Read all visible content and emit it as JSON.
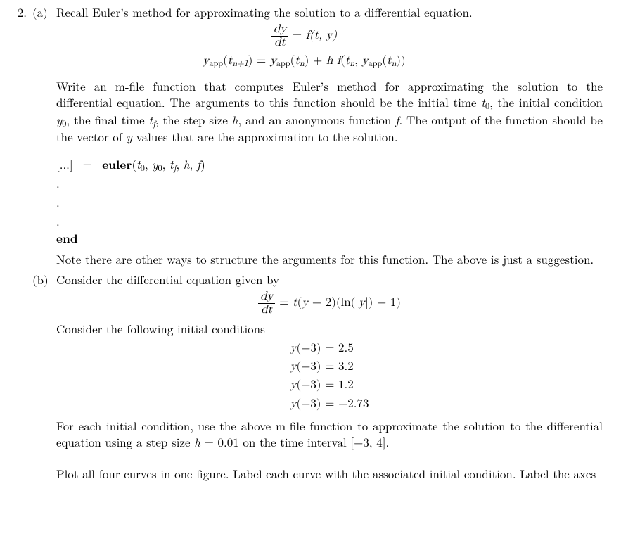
{
  "colors": {
    "text": "#000000",
    "background": "#ffffff"
  },
  "typography": {
    "base_font_size_pt": 13,
    "math_font": "Latin Modern Math / Times",
    "body_font": "Latin Modern Roman / Times"
  },
  "question_number": "2.",
  "parts": {
    "a": {
      "label": "(a)",
      "intro": "Recall Euler’s method for approximating the solution to a differential equation.",
      "eq1_lhs_num": "dy",
      "eq1_lhs_den": "dt",
      "eq1_eq": " = ",
      "eq1_rhs": "f(t, y)",
      "eq2": "y",
      "eq2_app": "app",
      "eq2_tn1_open": "(t",
      "eq2_tn1_sub": "n+1",
      "eq2_tn1_close": ") = ",
      "eq2_yapp2": "y",
      "eq2_app2": "app",
      "eq2_tn_open": "(t",
      "eq2_tn_sub": "n",
      "eq2_tn_close": ") + h f(t",
      "eq2_tn_sub2": "n",
      "eq2_mid": ", y",
      "eq2_app3": "app",
      "eq2_tn_open2": "(t",
      "eq2_tn_sub3": "n",
      "eq2_tn_close2": "))",
      "body1a": "Write an m-file function that computes Euler’s method for approximating the solution to the differential equation. The arguments to this function should be the initial time ",
      "body1_t0_t": "t",
      "body1_t0_0": "0",
      "body1b": ", the initial condition ",
      "body1_y0_y": "y",
      "body1_y0_0": "0",
      "body1c": ", the final time ",
      "body1_tf_t": "t",
      "body1_tf_f": "f",
      "body1d": ", the step size ",
      "body1_h": "h",
      "body1e": ", and an anonymous function ",
      "body1_f": "f",
      "body1f": ". The output of the function should be the vector of ",
      "body1_y": "y",
      "body1g": "-values that are the approximation to the solution.",
      "sig_lhs": "[...]  =  euler(",
      "sig_args_t0_t": "t",
      "sig_args_t0_0": "0",
      "sig_c1": ", ",
      "sig_args_y0_y": "y",
      "sig_args_y0_0": "0",
      "sig_c2": ", ",
      "sig_args_tf_t": "t",
      "sig_args_tf_f": "f",
      "sig_c3": ", ",
      "sig_args_h": "h",
      "sig_c4": ", ",
      "sig_args_f": "f",
      "sig_close": ")",
      "dot1": ".",
      "dot2": ".",
      "dot3": ".",
      "end": "end",
      "note": "Note there are other ways to structure the arguments for this function.  The above is just a suggestion."
    },
    "b": {
      "label": "(b)",
      "intro": "Consider the differential equation given by",
      "eq_num": "dy",
      "eq_den": "dt",
      "eq_eq": " = ",
      "eq_rhs_a": "t(y − 2)(ln(|y|) − 1)",
      "ic_intro": "Consider the following initial conditions",
      "ic1_l": "y(−3) = ",
      "ic1_r": "2.5",
      "ic2_l": "y(−3) = ",
      "ic2_r": "3.2",
      "ic3_l": "y(−3) = ",
      "ic3_r": "1.2",
      "ic4_l": "y(−3) = ",
      "ic4_r": "−2.73",
      "body1a": "For each initial condition, use the above m-file function to approximate the solution to the differential equation using a step size ",
      "body1_h": "h",
      "body1b": " = 0.01 on the time interval [−3, 4].",
      "body2": "Plot all four curves in one figure. Label each curve with the associated initial condition. Label the axes"
    }
  }
}
